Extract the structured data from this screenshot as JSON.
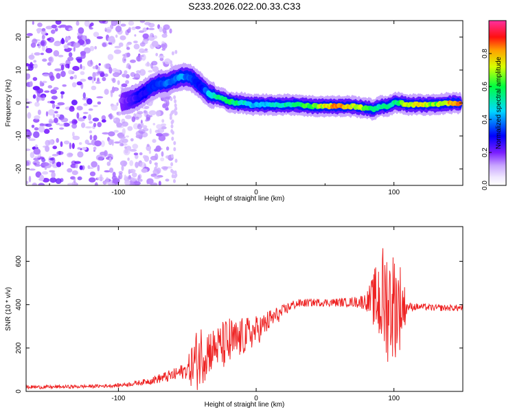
{
  "title": "S233.2026.022.00.33.C33",
  "colors": {
    "axis": "#000000",
    "snr_line": "#ee2222",
    "background": "#ffffff"
  },
  "chart_data": [
    {
      "type": "heatmap",
      "name": "spectrogram",
      "xlabel": "Height of straight line (km)",
      "ylabel": "Frequency (Hz)",
      "xlim": [
        -167,
        150
      ],
      "ylim": [
        -25,
        25
      ],
      "xticks": [
        -100,
        0,
        100
      ],
      "xtick_labels": [
        "-100",
        "0",
        "100"
      ],
      "yticks": [
        -20,
        -10,
        0,
        10,
        20
      ],
      "ytick_labels": [
        "-20",
        "-10",
        "0",
        "10",
        "20"
      ],
      "ridge": {
        "x": [
          -97,
          -90,
          -85,
          -80,
          -75,
          -70,
          -65,
          -60,
          -55,
          -50,
          -45,
          -40,
          -35,
          -30,
          -25,
          -20,
          -15,
          -10,
          -5,
          0,
          10,
          20,
          30,
          40,
          50,
          60,
          70,
          80,
          85,
          90,
          95,
          100,
          105,
          110,
          120,
          130,
          140,
          148
        ],
        "y": [
          0.5,
          1,
          2,
          3.5,
          5,
          6,
          6,
          7,
          8,
          8,
          7,
          5,
          3,
          2,
          1.5,
          0.5,
          0,
          0,
          -0.5,
          -0.5,
          -0.5,
          -0.5,
          -0.5,
          -1,
          -1,
          -1,
          -1,
          -1.5,
          -2,
          -1,
          -1,
          0,
          0,
          -0.5,
          -0.5,
          -0.5,
          0,
          0
        ],
        "amplitude": [
          0.2,
          0.25,
          0.3,
          0.3,
          0.35,
          0.35,
          0.4,
          0.4,
          0.45,
          0.4,
          0.35,
          0.3,
          0.45,
          0.55,
          0.6,
          0.65,
          0.6,
          0.55,
          0.5,
          0.45,
          0.5,
          0.55,
          0.6,
          0.7,
          0.8,
          0.9,
          0.8,
          0.7,
          0.6,
          0.55,
          0.6,
          0.55,
          0.7,
          0.75,
          0.8,
          0.7,
          0.85,
          0.95
        ]
      },
      "colorbar": {
        "label": "Normalized spectral amplitude",
        "range": [
          0,
          1
        ],
        "ticks": [
          0.0,
          0.2,
          0.4,
          0.6,
          0.8
        ],
        "tick_labels": [
          "0.0",
          "0.2",
          "0.4",
          "0.6",
          "0.8"
        ]
      }
    },
    {
      "type": "line",
      "name": "snr",
      "xlabel": "Height of straight line (km)",
      "ylabel": "SNR (10 * v/v)",
      "xlim": [
        -167,
        150
      ],
      "ylim": [
        0,
        760
      ],
      "xticks": [
        -100,
        0,
        100
      ],
      "xtick_labels": [
        "-100",
        "0",
        "100"
      ],
      "yticks": [
        0,
        200,
        400,
        600
      ],
      "ytick_labels": [
        "0",
        "200",
        "400",
        "600"
      ],
      "series": [
        {
          "name": "SNR",
          "x": [
            -167,
            -150,
            -130,
            -110,
            -100,
            -90,
            -80,
            -70,
            -60,
            -50,
            -45,
            -40,
            -35,
            -30,
            -25,
            -20,
            -15,
            -10,
            -5,
            0,
            5,
            10,
            15,
            20,
            25,
            30,
            40,
            50,
            60,
            70,
            80,
            85,
            90,
            95,
            100,
            105,
            110,
            120,
            130,
            140,
            150
          ],
          "values": [
            20,
            20,
            22,
            25,
            28,
            35,
            45,
            60,
            75,
            100,
            130,
            170,
            190,
            200,
            210,
            220,
            230,
            250,
            265,
            280,
            300,
            330,
            350,
            370,
            395,
            405,
            410,
            410,
            410,
            412,
            415,
            420,
            425,
            410,
            400,
            395,
            390,
            390,
            385,
            385,
            385
          ],
          "noise": [
            8,
            8,
            8,
            8,
            9,
            10,
            14,
            22,
            30,
            40,
            140,
            150,
            120,
            90,
            110,
            130,
            100,
            90,
            80,
            70,
            60,
            50,
            40,
            30,
            25,
            20,
            18,
            18,
            20,
            22,
            40,
            120,
            250,
            280,
            260,
            200,
            20,
            15,
            15,
            15,
            15
          ]
        }
      ]
    }
  ]
}
